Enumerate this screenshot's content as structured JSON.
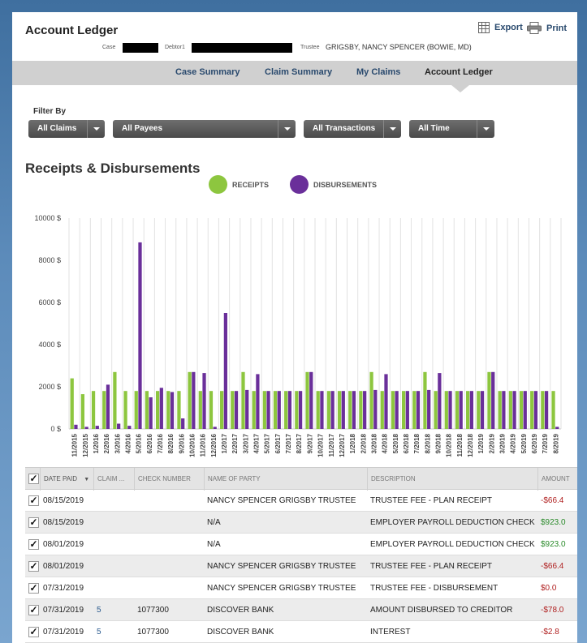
{
  "header": {
    "title": "Account Ledger",
    "export_label": "Export",
    "print_label": "Print",
    "case_label": "Case",
    "debtor_label": "Debtor1",
    "trustee_label": "Trustee",
    "trustee_value": "GRIGSBY, NANCY SPENCER (BOWIE, MD)"
  },
  "nav": {
    "tabs": [
      {
        "label": "Case Summary"
      },
      {
        "label": "Claim Summary"
      },
      {
        "label": "My Claims"
      },
      {
        "label": "Account Ledger",
        "active": true
      }
    ]
  },
  "filters": {
    "label": "Filter By",
    "claims": "All Claims",
    "payees": "All Payees",
    "transactions": "All Transactions",
    "time": "All Time"
  },
  "section_title": "Receipts & Disbursements",
  "colors": {
    "receipts": "#8dc63f",
    "disbursements": "#6a2f9a",
    "negative": "#b02020",
    "positive": "#2a8a2a"
  },
  "chart_data": {
    "type": "bar",
    "ylim": [
      0,
      10000
    ],
    "yticks": [
      "0 $",
      "2000 $",
      "4000 $",
      "6000 $",
      "8000 $",
      "10000 $"
    ],
    "categories": [
      "11/2015",
      "12/2015",
      "1/2016",
      "2/2016",
      "3/2016",
      "4/2016",
      "5/2016",
      "6/2016",
      "7/2016",
      "8/2016",
      "9/2016",
      "10/2016",
      "11/2016",
      "12/2016",
      "1/2017",
      "2/2017",
      "3/2017",
      "4/2017",
      "5/2017",
      "6/2017",
      "7/2017",
      "8/2017",
      "9/2017",
      "10/2017",
      "11/2017",
      "12/2017",
      "1/2018",
      "2/2018",
      "3/2018",
      "4/2018",
      "5/2018",
      "6/2018",
      "7/2018",
      "8/2018",
      "9/2018",
      "10/2018",
      "11/2018",
      "12/2018",
      "1/2019",
      "2/2019",
      "3/2019",
      "4/2019",
      "5/2019",
      "6/2019",
      "7/2019",
      "8/2019"
    ],
    "series": [
      {
        "name": "RECEIPTS",
        "values": [
          2400,
          1650,
          1800,
          1800,
          2700,
          1800,
          1800,
          1800,
          1800,
          1800,
          1800,
          2700,
          1800,
          1800,
          1800,
          1800,
          2700,
          1800,
          1800,
          1800,
          1800,
          1800,
          2700,
          1800,
          1800,
          1800,
          1800,
          1800,
          2700,
          1800,
          1800,
          1800,
          1800,
          2700,
          1800,
          1800,
          1800,
          1800,
          1800,
          2700,
          1800,
          1800,
          1800,
          1800,
          1800,
          1800
        ]
      },
      {
        "name": "DISBURSEMENTS",
        "values": [
          200,
          100,
          150,
          2100,
          250,
          150,
          8850,
          1500,
          1950,
          1750,
          500,
          2700,
          2650,
          100,
          5500,
          1800,
          1850,
          2600,
          1800,
          1800,
          1800,
          1800,
          2700,
          1800,
          1800,
          1800,
          1800,
          1800,
          1850,
          2600,
          1800,
          1800,
          1800,
          1850,
          2650,
          1800,
          1800,
          1800,
          1800,
          2700,
          1800,
          1800,
          1800,
          1800,
          1800,
          100
        ]
      }
    ]
  },
  "table": {
    "headers": [
      "DATE PAID",
      "CLAIM ...",
      "CHECK NUMBER",
      "NAME OF PARTY",
      "DESCRIPTION",
      "AMOUNT"
    ],
    "check_mark": "✓",
    "sort_icon": "▼",
    "rows": [
      {
        "date": "08/15/2019",
        "claim": "",
        "check": "",
        "party": "NANCY SPENCER GRIGSBY TRUSTEE",
        "desc": "TRUSTEE FEE - PLAN RECEIPT",
        "amount": "-$66.4",
        "sign": "neg"
      },
      {
        "date": "08/15/2019",
        "claim": "",
        "check": "",
        "party": "N/A",
        "desc": "EMPLOYER PAYROLL DEDUCTION CHECK",
        "amount": "$923.0",
        "sign": "pos"
      },
      {
        "date": "08/01/2019",
        "claim": "",
        "check": "",
        "party": "N/A",
        "desc": "EMPLOYER PAYROLL DEDUCTION CHECK",
        "amount": "$923.0",
        "sign": "pos"
      },
      {
        "date": "08/01/2019",
        "claim": "",
        "check": "",
        "party": "NANCY SPENCER GRIGSBY TRUSTEE",
        "desc": "TRUSTEE FEE - PLAN RECEIPT",
        "amount": "-$66.4",
        "sign": "neg"
      },
      {
        "date": "07/31/2019",
        "claim": "",
        "check": "",
        "party": "NANCY SPENCER GRIGSBY TRUSTEE",
        "desc": "TRUSTEE FEE - DISBURSEMENT",
        "amount": "$0.0",
        "sign": "neg"
      },
      {
        "date": "07/31/2019",
        "claim": "5",
        "check": "1077300",
        "party": "DISCOVER BANK",
        "desc": "AMOUNT DISBURSED TO CREDITOR",
        "amount": "-$78.0",
        "sign": "neg"
      },
      {
        "date": "07/31/2019",
        "claim": "5",
        "check": "1077300",
        "party": "DISCOVER BANK",
        "desc": "INTEREST",
        "amount": "-$2.8",
        "sign": "neg"
      }
    ]
  }
}
